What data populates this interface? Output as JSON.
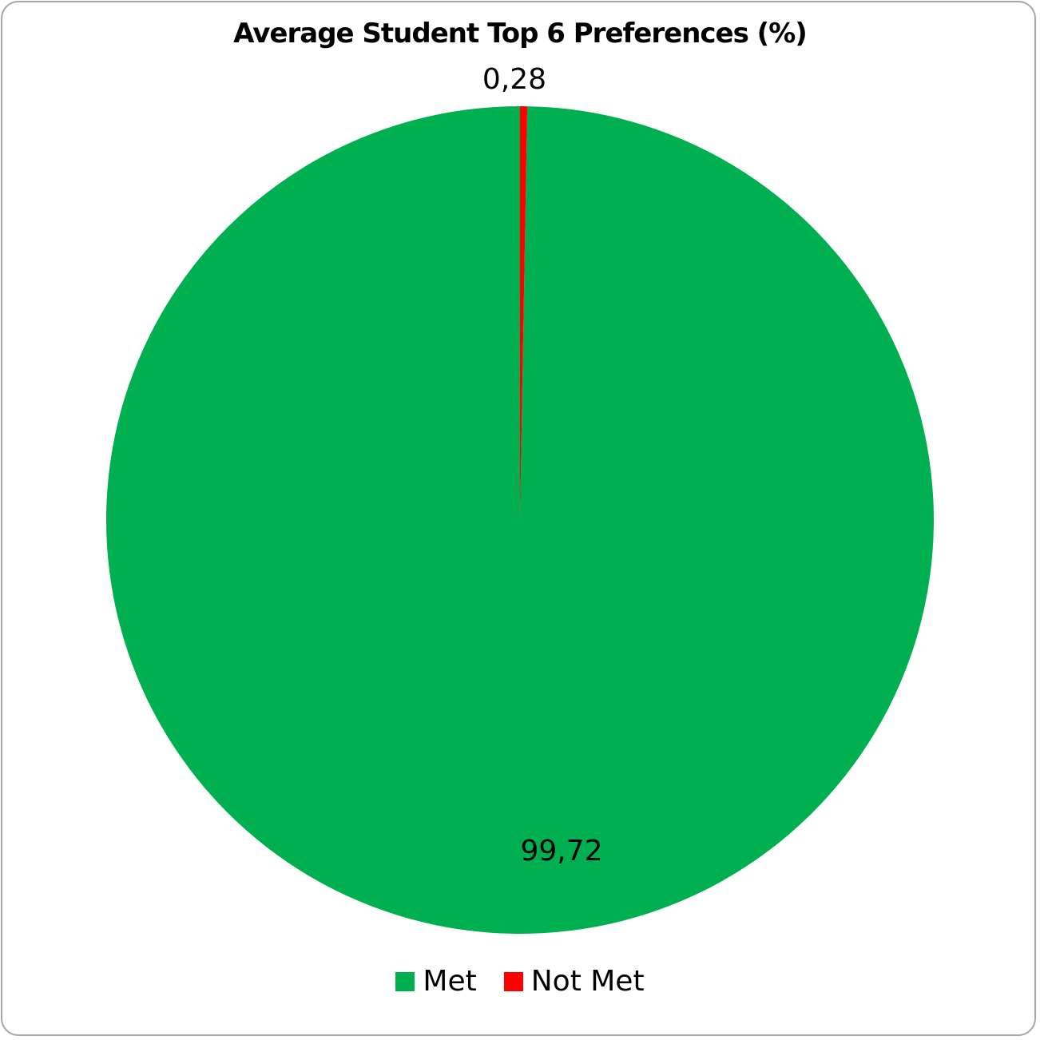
{
  "chart_data": {
    "type": "pie",
    "title": "Average Student Top 6 Preferences (%)",
    "categories": [
      "Met",
      "Not Met"
    ],
    "values": [
      99.72,
      0.28
    ],
    "value_labels": [
      "99,72",
      "0,28"
    ],
    "colors": [
      "#00b050",
      "#ff0000"
    ],
    "start_angle_deg": 0,
    "direction": "counterclockwise",
    "legend_position": "bottom"
  }
}
